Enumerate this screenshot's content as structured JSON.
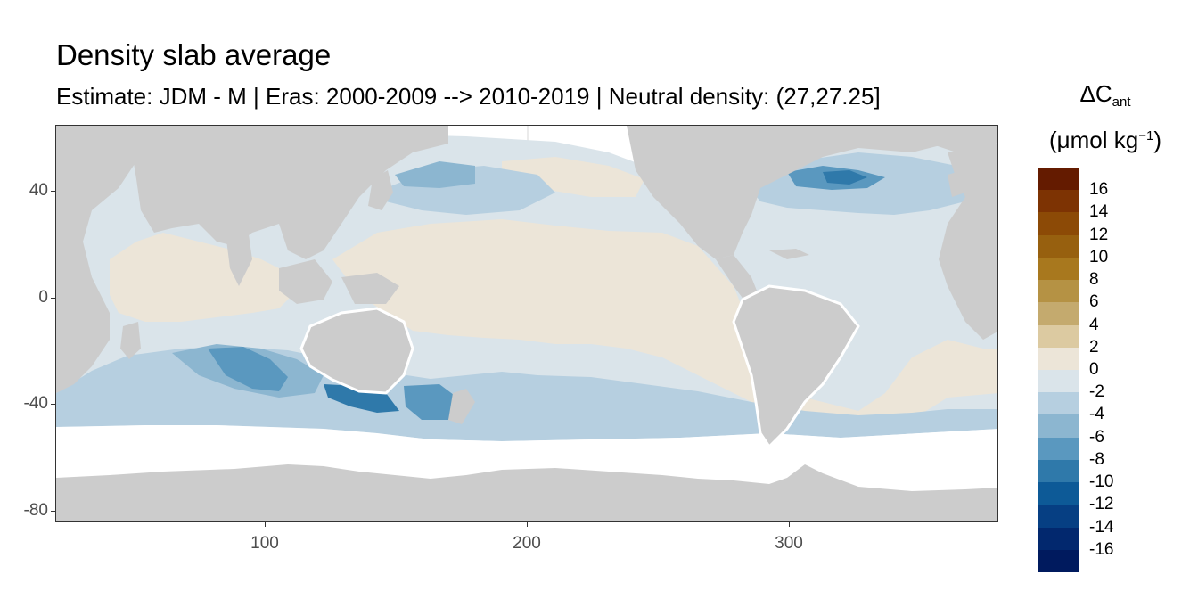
{
  "title": "Density slab average",
  "subtitle": "Estimate: JDM - M | Eras: 2000-2009 --> 2010-2019 | Neutral density: (27,27.25]",
  "legend": {
    "title_symbol": "ΔC",
    "title_subscript": "ant",
    "unit_prefix": "(μmol kg",
    "unit_superscript": "−1",
    "unit_suffix": ")",
    "labels": [
      "16",
      "14",
      "12",
      "10",
      "8",
      "6",
      "4",
      "2",
      "0",
      "-2",
      "-4",
      "-6",
      "-8",
      "-10",
      "-12",
      "-14",
      "-16"
    ],
    "colors": [
      "#641b00",
      "#7d3303",
      "#8c4a06",
      "#97600f",
      "#a8781e",
      "#b59244",
      "#c4aa6e",
      "#dccaa1",
      "#ece5d8",
      "#dae4ea",
      "#b6cfe0",
      "#8cb6d0",
      "#5a98bf",
      "#2f79aa",
      "#0d5a97",
      "#063f83",
      "#02286e",
      "#001a5e"
    ]
  },
  "axes": {
    "x_ticks": [
      "100",
      "200",
      "300"
    ],
    "y_ticks": [
      "40",
      "0",
      "-40",
      "-80"
    ]
  },
  "colors": {
    "land": "#cccccc",
    "missing": "#ffffff",
    "grid": "#ebebeb"
  }
}
